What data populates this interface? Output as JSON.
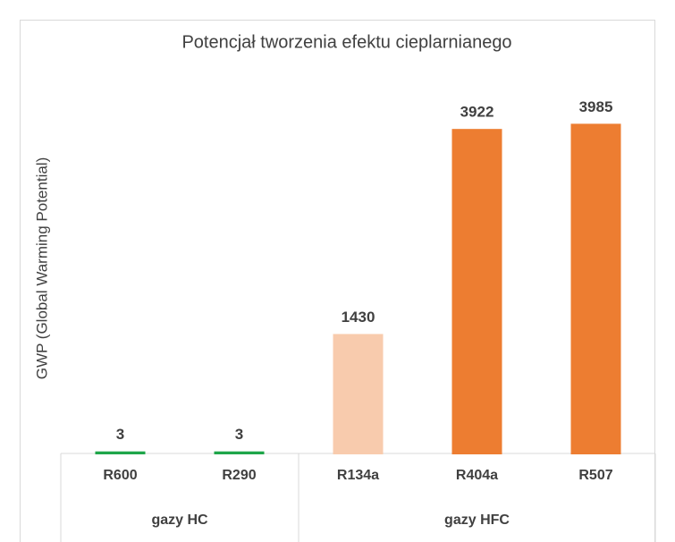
{
  "chart_data": {
    "type": "bar",
    "title": "Potencjał tworzenia efektu cieplarnianego",
    "y_label": "GWP (Global Warming Potential)",
    "categories": [
      "R600",
      "R290",
      "R134a",
      "R404a",
      "R507"
    ],
    "values": [
      3,
      3,
      1430,
      3922,
      3985
    ],
    "colors": [
      "#1fa64a",
      "#1fa64a",
      "#f8cbad",
      "#ed7d31",
      "#ed7d31"
    ],
    "groups": [
      {
        "name": "gazy HC",
        "span": 2
      },
      {
        "name": "gazy HFC",
        "span": 3
      }
    ],
    "ylim": [
      0,
      4500
    ]
  }
}
